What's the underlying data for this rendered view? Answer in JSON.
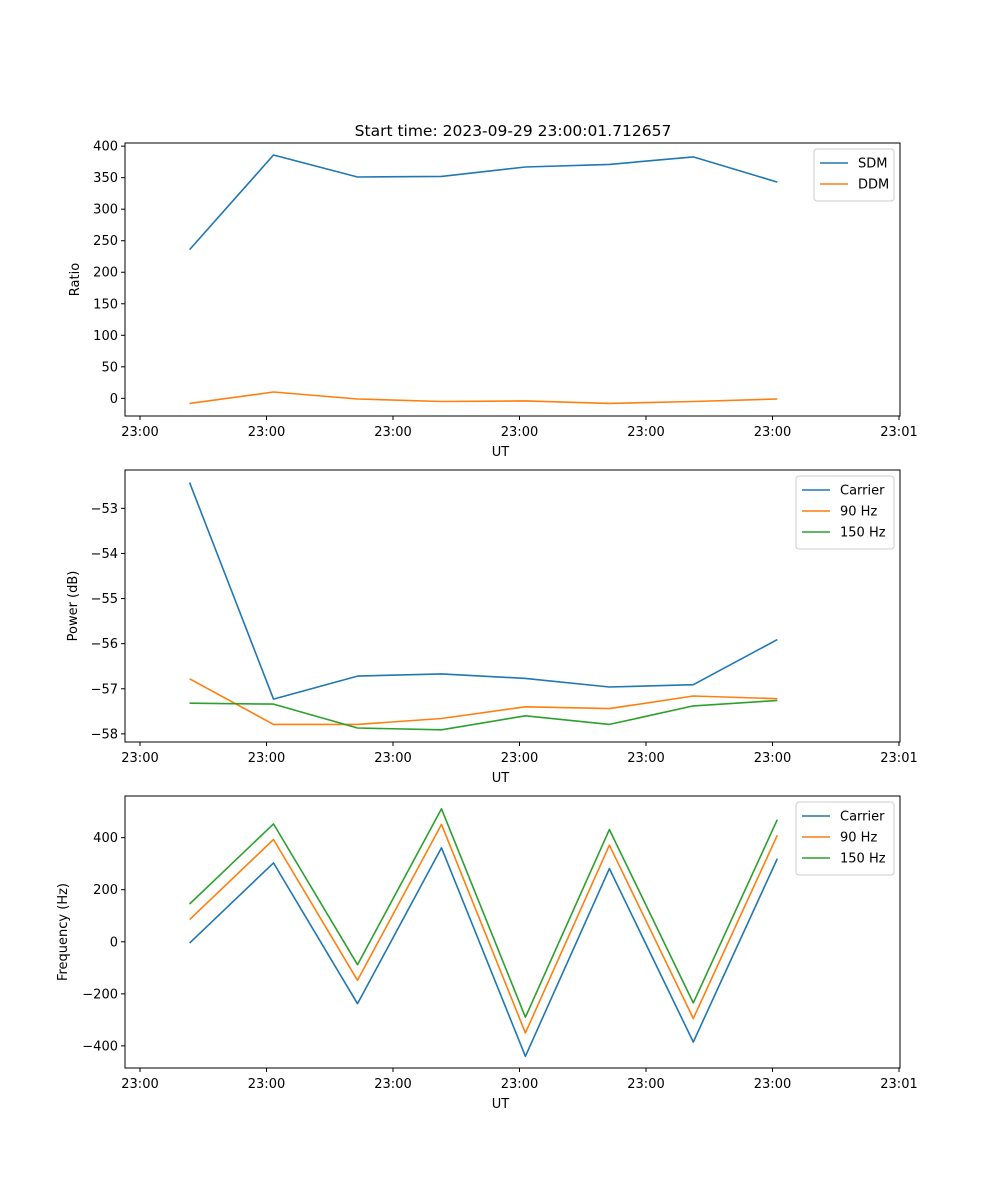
{
  "title": "Start time: 2023-09-29 23:00:01.712657",
  "colors": {
    "c0": "#1f77b4",
    "c1": "#ff7f0e",
    "c2": "#2ca02c"
  },
  "chart_data": [
    {
      "type": "line",
      "xlabel": "UT",
      "ylabel": "Ratio",
      "xticks": [
        "23:00",
        "23:00",
        "23:00",
        "23:00",
        "23:00",
        "23:00",
        "23:01"
      ],
      "xlim": [
        -0.6,
        11.4
      ],
      "x": [
        0.4,
        1.7,
        3.0,
        4.3,
        5.6,
        6.9,
        8.2,
        9.5
      ],
      "ylim": [
        -28,
        405
      ],
      "yticks": [
        0,
        50,
        100,
        150,
        200,
        250,
        300,
        350,
        400
      ],
      "legend": "top-right",
      "series": [
        {
          "name": "SDM",
          "color": "c0",
          "values": [
            236,
            386,
            351,
            352,
            367,
            371,
            383,
            343
          ]
        },
        {
          "name": "DDM",
          "color": "c1",
          "values": [
            -8,
            10,
            -1,
            -5,
            -4,
            -8,
            -5,
            -1
          ]
        }
      ]
    },
    {
      "type": "line",
      "xlabel": "UT",
      "ylabel": "Power (dB)",
      "xticks": [
        "23:00",
        "23:00",
        "23:00",
        "23:00",
        "23:00",
        "23:00",
        "23:01"
      ],
      "xlim": [
        -0.6,
        11.4
      ],
      "x": [
        0.4,
        1.7,
        3.0,
        4.3,
        5.6,
        6.9,
        8.2,
        9.5
      ],
      "ylim": [
        -58.18,
        -52.15
      ],
      "yticks": [
        -53,
        -54,
        -55,
        -56,
        -57,
        -58
      ],
      "yticklabels": [
        "−53",
        "−54",
        "−55",
        "−56",
        "−57",
        "−58"
      ],
      "legend": "top-right",
      "series": [
        {
          "name": "Carrier",
          "color": "c0",
          "values": [
            -52.43,
            -57.23,
            -56.72,
            -56.67,
            -56.77,
            -56.96,
            -56.91,
            -55.91
          ]
        },
        {
          "name": "90 Hz",
          "color": "c1",
          "values": [
            -56.78,
            -57.79,
            -57.79,
            -57.66,
            -57.4,
            -57.44,
            -57.16,
            -57.22
          ]
        },
        {
          "name": "150 Hz",
          "color": "c2",
          "values": [
            -57.32,
            -57.34,
            -57.87,
            -57.91,
            -57.6,
            -57.79,
            -57.38,
            -57.26
          ]
        }
      ]
    },
    {
      "type": "line",
      "xlabel": "UT",
      "ylabel": "Frequency (Hz)",
      "xticks": [
        "23:00",
        "23:00",
        "23:00",
        "23:00",
        "23:00",
        "23:00",
        "23:01"
      ],
      "xlim": [
        -0.6,
        11.4
      ],
      "x": [
        0.4,
        1.7,
        3.0,
        4.3,
        5.6,
        6.9,
        8.2,
        9.5
      ],
      "ylim": [
        -485,
        560
      ],
      "yticks": [
        400,
        200,
        0,
        -200,
        -400
      ],
      "yticklabels": [
        "400",
        "200",
        "0",
        "−200",
        "−400"
      ],
      "legend": "top-right",
      "series": [
        {
          "name": "Carrier",
          "color": "c0",
          "values": [
            -5,
            303,
            -238,
            361,
            -440,
            281,
            -385,
            319
          ]
        },
        {
          "name": "90 Hz",
          "color": "c1",
          "values": [
            85,
            393,
            -148,
            451,
            -350,
            371,
            -295,
            409
          ]
        },
        {
          "name": "150 Hz",
          "color": "c2",
          "values": [
            145,
            453,
            -88,
            511,
            -290,
            431,
            -235,
            469
          ]
        }
      ]
    }
  ]
}
